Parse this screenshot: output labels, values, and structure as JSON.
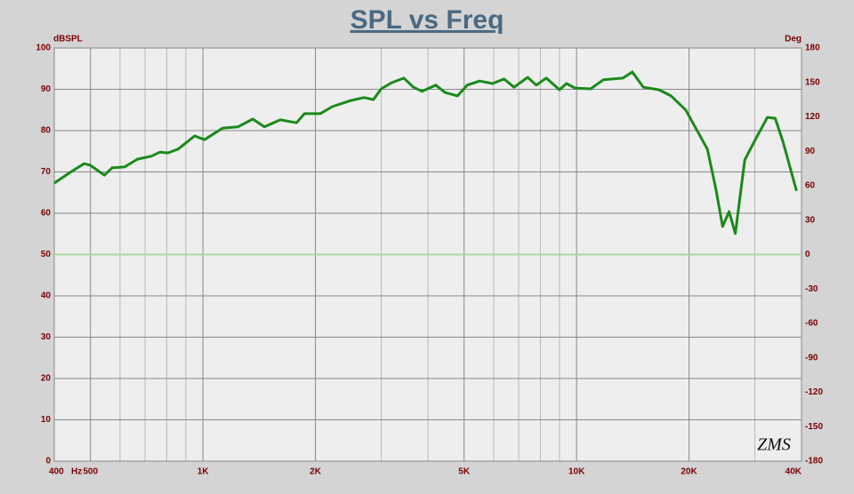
{
  "chart_data": {
    "type": "line",
    "title": "SPL vs Freq",
    "y_label": "dBSPL",
    "y2_label": "Deg",
    "x_unit": "Hz",
    "watermark": "ZMS",
    "log_x": true,
    "grid": true,
    "xlim": [
      400,
      40000
    ],
    "xticks": [
      400,
      500,
      {
        "value": 1000,
        "label": "1K"
      },
      {
        "value": 2000,
        "label": "2K"
      },
      {
        "value": 5000,
        "label": "5K"
      },
      {
        "value": 10000,
        "label": "10K"
      },
      {
        "value": 20000,
        "label": "20K"
      },
      {
        "value": 40000,
        "label": "40K"
      }
    ],
    "x_minor_ticks": [
      600,
      700,
      800,
      900,
      3000,
      4000,
      6000,
      7000,
      8000,
      9000,
      30000
    ],
    "ylim": [
      0,
      100
    ],
    "yticks": [
      0,
      10,
      20,
      30,
      40,
      50,
      60,
      70,
      80,
      90,
      100
    ],
    "y2lim": [
      -180,
      180
    ],
    "y2ticks": [
      -180,
      -150,
      -120,
      -90,
      -60,
      -30,
      0,
      30,
      60,
      90,
      120,
      150,
      180
    ],
    "y2_zero_line_color": "#a8d8a0",
    "x": [
      400,
      443,
      481,
      500,
      545,
      571,
      617,
      668,
      728,
      767,
      806,
      857,
      950,
      1010,
      1130,
      1240,
      1360,
      1460,
      1610,
      1780,
      1870,
      2060,
      2220,
      2490,
      2700,
      2860,
      3000,
      3200,
      3450,
      3660,
      3860,
      4200,
      4450,
      4800,
      5100,
      5500,
      5960,
      6400,
      6800,
      7400,
      7800,
      8300,
      9000,
      9400,
      9900,
      10900,
      11800,
      13300,
      14100,
      15100,
      16600,
      17900,
      19600,
      21200,
      22400,
      23600,
      24600,
      25600,
      26600,
      28200,
      30000,
      32400,
      34000,
      35700,
      38800
    ],
    "series": [
      {
        "name": "SPL",
        "color": "#1a8a1a",
        "values": [
          67.3,
          70,
          72,
          71.6,
          69.2,
          71,
          71.2,
          73.1,
          73.8,
          74.8,
          74.6,
          75.5,
          78.7,
          77.8,
          80.6,
          80.9,
          82.8,
          80.9,
          82.6,
          81.9,
          84.1,
          84.1,
          85.8,
          87.3,
          88,
          87.5,
          90.1,
          91.6,
          92.7,
          90.5,
          89.5,
          91,
          89.2,
          88.4,
          91,
          92,
          91.4,
          92.5,
          90.5,
          92.9,
          91,
          92.7,
          89.9,
          91.4,
          90.3,
          90.1,
          92.3,
          92.7,
          94.2,
          90.5,
          89.9,
          88.4,
          85,
          79.4,
          75.5,
          65.8,
          56.8,
          60.4,
          55.1,
          72.9,
          77.6,
          83.2,
          83,
          77.2,
          65.4
        ]
      }
    ]
  }
}
